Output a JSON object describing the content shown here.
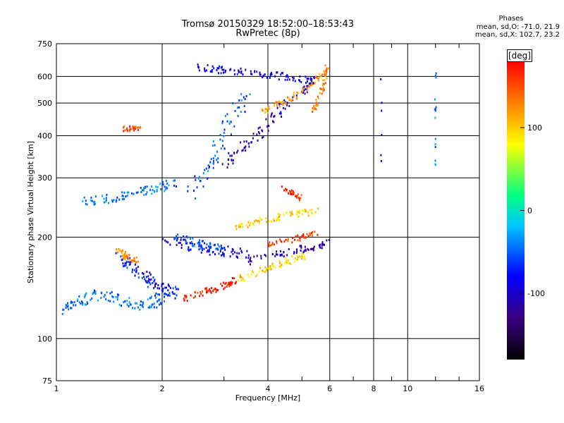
{
  "header": {
    "title_line1": "Tromsø 20150329 18:52:00–18:53:43",
    "title_line2": "RwPretec (8p)",
    "stats_title": "Phases",
    "stats_line1": "mean, sd,O: -71.0, 21.9",
    "stats_line2": "mean, sd,X: 102.7, 23.2"
  },
  "colorbar": {
    "label": "[deg]",
    "ticks": [
      100,
      0,
      -100
    ],
    "range": [
      -180,
      180
    ],
    "colormap": [
      "#000000",
      "#3a0080",
      "#0000ff",
      "#00c8ff",
      "#00ff80",
      "#ffff00",
      "#ff8000",
      "#ff0000"
    ]
  },
  "chart_data": {
    "type": "scatter",
    "xlabel": "Frequency [MHz]",
    "ylabel": "Stationary phase Virtual Height [km]",
    "xscale": "log",
    "yscale": "log",
    "xlim": [
      1,
      16
    ],
    "ylim": [
      75,
      750
    ],
    "xticks": [
      1,
      2,
      4,
      6,
      8,
      10,
      16
    ],
    "yticks": [
      75,
      100,
      200,
      300,
      400,
      500,
      600,
      750
    ],
    "grid": true,
    "traces": [
      {
        "x": [
          1.02,
          1.1,
          1.2,
          1.3,
          1.45,
          1.6,
          1.75,
          1.9,
          2.0
        ],
        "y": [
          120,
          125,
          130,
          135,
          132,
          128,
          125,
          128,
          132
        ],
        "phase": -45,
        "spread": 6
      },
      {
        "x": [
          1.5,
          1.6,
          1.7,
          1.8,
          1.9,
          2.0,
          2.1,
          2.2
        ],
        "y": [
          175,
          168,
          160,
          152,
          145,
          140,
          138,
          136
        ],
        "phase": -75,
        "spread": 7
      },
      {
        "x": [
          1.5,
          1.55,
          1.6,
          1.7
        ],
        "y": [
          180,
          178,
          175,
          170
        ],
        "phase": 125,
        "spread": 4
      },
      {
        "x": [
          1.2,
          1.35,
          1.5,
          1.65,
          1.8,
          2.0,
          2.2
        ],
        "y": [
          255,
          258,
          262,
          268,
          275,
          282,
          290
        ],
        "phase": -45,
        "spread": 5
      },
      {
        "x": [
          1.55,
          1.65,
          1.75
        ],
        "y": [
          420,
          420,
          418
        ],
        "phase": 150,
        "spread": 3
      },
      {
        "x": [
          2.3,
          2.5,
          2.7,
          2.9,
          3.1,
          3.3
        ],
        "y": [
          132,
          135,
          138,
          142,
          146,
          150
        ],
        "phase": 165,
        "spread": 4
      },
      {
        "x": [
          2.0,
          2.3,
          2.6,
          2.9,
          3.2,
          3.5
        ],
        "y": [
          195,
          190,
          186,
          182,
          180,
          178
        ],
        "phase": -90,
        "spread": 6
      },
      {
        "x": [
          2.2,
          2.4,
          2.6,
          2.8,
          3.0
        ],
        "y": [
          200,
          195,
          190,
          186,
          183
        ],
        "phase": -55,
        "spread": 5
      },
      {
        "x": [
          3.3,
          3.7,
          4.0,
          4.4,
          4.8,
          5.2
        ],
        "y": [
          150,
          156,
          162,
          168,
          172,
          176
        ],
        "phase": 95,
        "spread": 4
      },
      {
        "x": [
          3.5,
          4.0,
          4.5,
          5.0,
          5.5,
          5.9
        ],
        "y": [
          170,
          175,
          180,
          185,
          188,
          192
        ],
        "phase": -110,
        "spread": 4
      },
      {
        "x": [
          4.0,
          4.5,
          5.0,
          5.5
        ],
        "y": [
          190,
          195,
          200,
          205
        ],
        "phase": 160,
        "spread": 3
      },
      {
        "x": [
          3.2,
          3.6,
          4.0,
          4.4,
          5.0,
          5.6
        ],
        "y": [
          215,
          220,
          226,
          230,
          235,
          240
        ],
        "phase": 100,
        "spread": 4
      },
      {
        "x": [
          4.4,
          4.7,
          5.0
        ],
        "y": [
          280,
          270,
          260
        ],
        "phase": 160,
        "spread": 3
      },
      {
        "x": [
          2.4,
          2.6,
          2.8,
          3.0,
          3.2,
          3.5
        ],
        "y": [
          270,
          300,
          340,
          400,
          460,
          540
        ],
        "phase": -55,
        "spread": 9
      },
      {
        "x": [
          3.0,
          3.3,
          3.6,
          3.9,
          4.3,
          4.8,
          5.3
        ],
        "y": [
          330,
          360,
          390,
          420,
          470,
          520,
          580
        ],
        "phase": -110,
        "spread": 6
      },
      {
        "x": [
          3.8,
          4.2,
          4.6,
          5.0,
          5.4,
          5.8
        ],
        "y": [
          470,
          490,
          510,
          540,
          580,
          620
        ],
        "phase": 120,
        "spread": 4
      },
      {
        "x": [
          2.5,
          2.8,
          3.1,
          3.5,
          4.0,
          4.5,
          5.0,
          5.5
        ],
        "y": [
          640,
          630,
          625,
          615,
          605,
          600,
          590,
          580
        ],
        "phase": -90,
        "spread": 4
      },
      {
        "x": [
          5.4,
          5.6,
          5.8,
          5.9
        ],
        "y": [
          470,
          520,
          580,
          640
        ],
        "phase": 130,
        "spread": 3
      },
      {
        "x": [
          12.0,
          12.0,
          12.0,
          12.0,
          12.0,
          12.0
        ],
        "y": [
          620,
          560,
          480,
          410,
          350,
          300
        ],
        "phase": -40,
        "spread": 1
      },
      {
        "x": [
          8.4,
          8.4,
          8.4
        ],
        "y": [
          630,
          410,
          330
        ],
        "phase": -90,
        "spread": 1
      }
    ]
  }
}
